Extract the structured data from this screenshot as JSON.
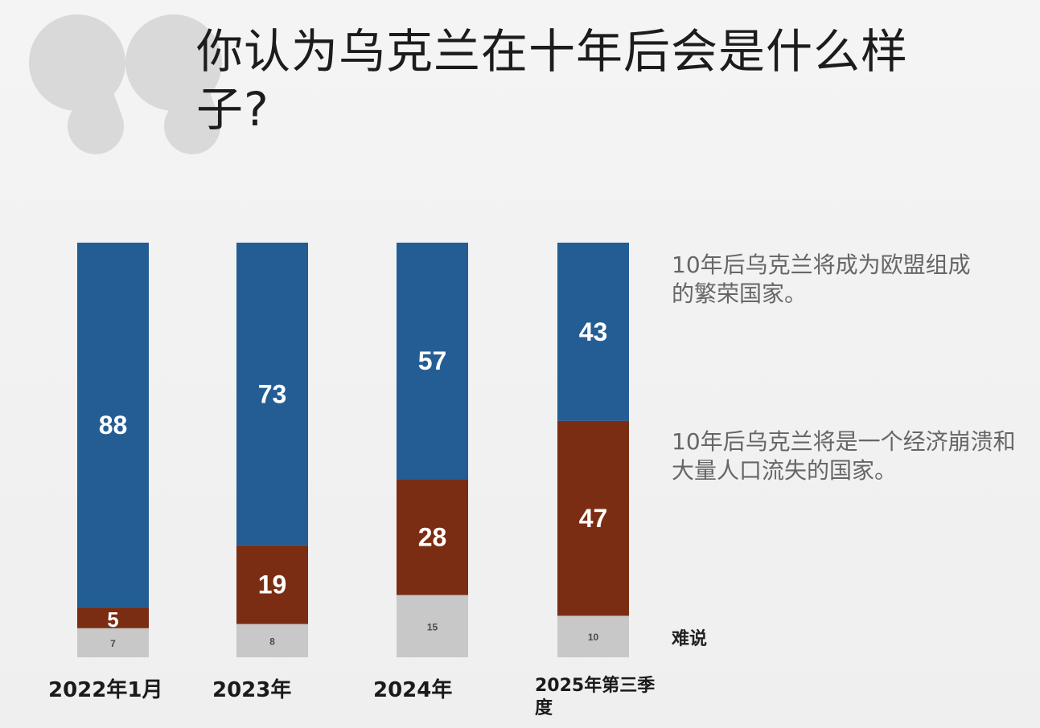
{
  "title": "你认为乌克兰在十年后会是什么样子?",
  "legend": {
    "prosperous": "10年后乌克兰将成为欧盟组成的繁荣国家。",
    "collapse": "10年后乌克兰将是一个经济崩溃和大量人口流失的国家。",
    "hard_to_say": "难说"
  },
  "colors": {
    "prosperous": "#245d94",
    "collapse": "#7a2d12",
    "hard_to_say": "#c8c8c8"
  },
  "chart_data": {
    "type": "bar",
    "stacked": true,
    "title": "你认为乌克兰在十年后会是什么样子?",
    "categories": [
      "2022年1月",
      "2023年",
      "2024年",
      "2025年第三季度"
    ],
    "series": [
      {
        "name": "10年后乌克兰将成为欧盟组成的繁荣国家。",
        "values": [
          88,
          73,
          57,
          43
        ]
      },
      {
        "name": "10年后乌克兰将是一个经济崩溃和大量人口流失的国家。",
        "values": [
          5,
          19,
          28,
          47
        ]
      },
      {
        "name": "难说",
        "values": [
          7,
          8,
          15,
          10
        ]
      }
    ],
    "xlabel": "",
    "ylabel": "",
    "ylim": [
      0,
      100
    ],
    "legend": "right",
    "grid": false
  }
}
